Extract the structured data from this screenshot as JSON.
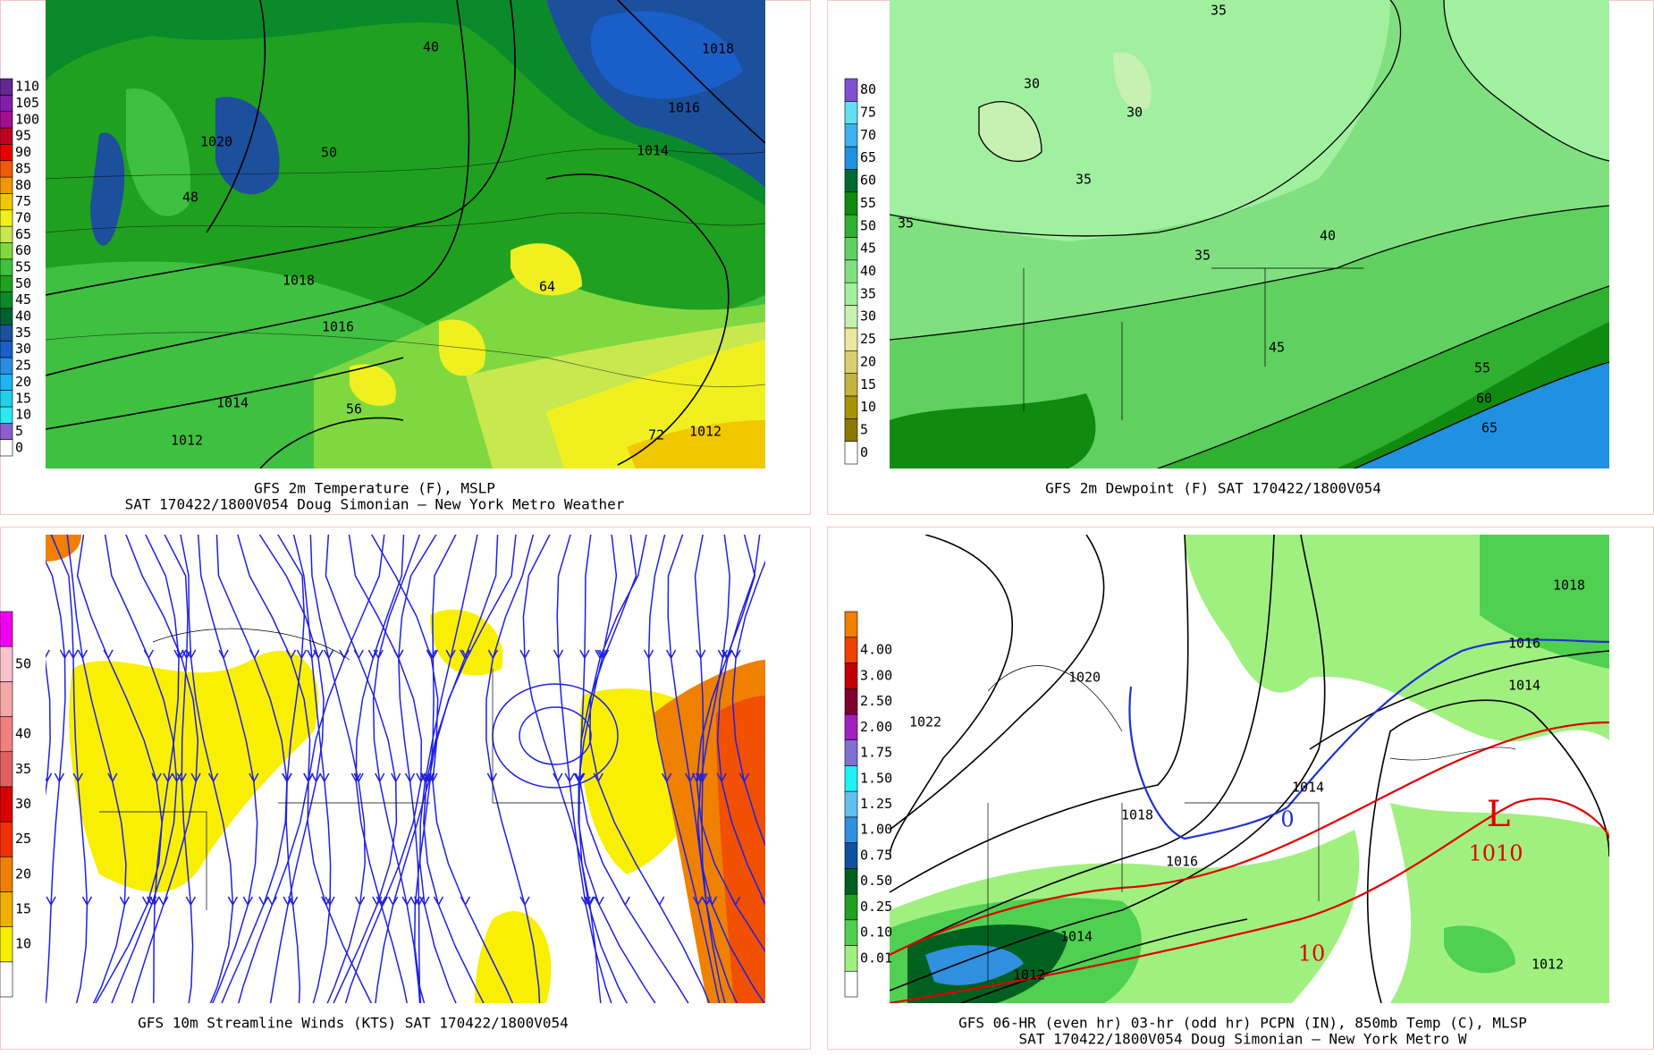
{
  "panels": [
    {
      "caption": [
        "GFS 2m Temperature (F), MSLP",
        "SAT 170422/1800V054 Doug Simonian — New York Metro Weather"
      ],
      "colorbar": [
        {
          "label": "0",
          "color": "#ffffff"
        },
        {
          "label": "5",
          "color": "#8a5fd0"
        },
        {
          "label": "10",
          "color": "#30e8f0"
        },
        {
          "label": "15",
          "color": "#20d0e8"
        },
        {
          "label": "20",
          "color": "#20b4f0"
        },
        {
          "label": "25",
          "color": "#2a8ee0"
        },
        {
          "label": "30",
          "color": "#1a5ec8"
        },
        {
          "label": "35",
          "color": "#1c4f9c"
        },
        {
          "label": "40",
          "color": "#006030"
        },
        {
          "label": "45",
          "color": "#0a8a2a"
        },
        {
          "label": "50",
          "color": "#20a020"
        },
        {
          "label": "55",
          "color": "#40c040"
        },
        {
          "label": "60",
          "color": "#80d840"
        },
        {
          "label": "65",
          "color": "#c8e850"
        },
        {
          "label": "70",
          "color": "#f0f020"
        },
        {
          "label": "75",
          "color": "#f0c800"
        },
        {
          "label": "80",
          "color": "#f09800"
        },
        {
          "label": "85",
          "color": "#f05a00"
        },
        {
          "label": "90",
          "color": "#e80000"
        },
        {
          "label": "95",
          "color": "#c00020"
        },
        {
          "label": "100",
          "color": "#a0108a"
        },
        {
          "label": "105",
          "color": "#8020a8"
        },
        {
          "label": "110",
          "color": "#602890"
        }
      ],
      "contour_labels": [
        {
          "text": "1020",
          "color": "#000000"
        },
        {
          "text": "1018",
          "color": "#000000"
        },
        {
          "text": "1016",
          "color": "#000000"
        },
        {
          "text": "1014",
          "color": "#000000"
        },
        {
          "text": "1012",
          "color": "#000000"
        },
        {
          "text": "1018",
          "color": "#000000"
        },
        {
          "text": "1016",
          "color": "#000000"
        },
        {
          "text": "1014",
          "color": "#000000"
        },
        {
          "text": "1012",
          "color": "#000000"
        },
        {
          "text": "40",
          "color": "#000000"
        },
        {
          "text": "48",
          "color": "#000000"
        },
        {
          "text": "50",
          "color": "#000000"
        },
        {
          "text": "64",
          "color": "#000000"
        },
        {
          "text": "72",
          "color": "#000000"
        },
        {
          "text": "56",
          "color": "#000000"
        }
      ]
    },
    {
      "caption": [
        "GFS 2m Dewpoint (F)  SAT 170422/1800V054"
      ],
      "colorbar": [
        {
          "label": "0",
          "color": "#ffffff"
        },
        {
          "label": "5",
          "color": "#8c7a00"
        },
        {
          "label": "10",
          "color": "#a89400"
        },
        {
          "label": "15",
          "color": "#c4b440"
        },
        {
          "label": "20",
          "color": "#d8d070"
        },
        {
          "label": "25",
          "color": "#ece8a0"
        },
        {
          "label": "30",
          "color": "#c8f0b0"
        },
        {
          "label": "35",
          "color": "#a0f0a0"
        },
        {
          "label": "40",
          "color": "#80e080"
        },
        {
          "label": "45",
          "color": "#60d060"
        },
        {
          "label": "50",
          "color": "#30b030"
        },
        {
          "label": "55",
          "color": "#108a10"
        },
        {
          "label": "60",
          "color": "#006a30"
        },
        {
          "label": "65",
          "color": "#2090e0"
        },
        {
          "label": "70",
          "color": "#40b0f0"
        },
        {
          "label": "75",
          "color": "#60e0f0"
        },
        {
          "label": "80",
          "color": "#8050d0"
        }
      ],
      "contour_labels": [
        {
          "text": "35",
          "color": "#000000"
        },
        {
          "text": "30",
          "color": "#000000"
        },
        {
          "text": "30",
          "color": "#000000"
        },
        {
          "text": "35",
          "color": "#000000"
        },
        {
          "text": "35",
          "color": "#000000"
        },
        {
          "text": "40",
          "color": "#000000"
        },
        {
          "text": "45",
          "color": "#000000"
        },
        {
          "text": "55",
          "color": "#000000"
        },
        {
          "text": "60",
          "color": "#000000"
        },
        {
          "text": "65",
          "color": "#000000"
        },
        {
          "text": "35",
          "color": "#000000"
        }
      ]
    },
    {
      "caption": [
        "GFS 10m Streamline Winds (KTS)  SAT 170422/1800V054"
      ],
      "colorbar": [
        {
          "label": null,
          "color": "#ffffff"
        },
        {
          "label": "10",
          "color": "#f8f000"
        },
        {
          "label": "15",
          "color": "#f0b000"
        },
        {
          "label": "20",
          "color": "#f08000"
        },
        {
          "label": "25",
          "color": "#f03000"
        },
        {
          "label": "30",
          "color": "#d80000"
        },
        {
          "label": "35",
          "color": "#e06060"
        },
        {
          "label": "40",
          "color": "#f08080"
        },
        {
          "label": null,
          "color": "#f4a8a8"
        },
        {
          "label": "50",
          "color": "#f8c4cc"
        },
        {
          "label": null,
          "color": "#f000f0"
        }
      ],
      "contour_labels": []
    },
    {
      "caption": [
        "GFS 06-HR (even hr) 03-hr (odd hr) PCPN (IN), 850mb Temp (C), MLSP",
        "SAT 170422/1800V054 Doug Simonian — New York Metro W"
      ],
      "colorbar": [
        {
          "label": null,
          "color": "#ffffff"
        },
        {
          "label": "0.01",
          "color": "#a0f080"
        },
        {
          "label": "0.10",
          "color": "#50d050"
        },
        {
          "label": "0.25",
          "color": "#20a020"
        },
        {
          "label": "0.50",
          "color": "#006020"
        },
        {
          "label": "0.75",
          "color": "#1050a0"
        },
        {
          "label": "1.00",
          "color": "#3090e0"
        },
        {
          "label": "1.25",
          "color": "#60c0f0"
        },
        {
          "label": "1.50",
          "color": "#20f0f0"
        },
        {
          "label": "1.75",
          "color": "#8070d0"
        },
        {
          "label": "2.00",
          "color": "#a020c0"
        },
        {
          "label": "2.50",
          "color": "#800030"
        },
        {
          "label": "3.00",
          "color": "#c00000"
        },
        {
          "label": "4.00",
          "color": "#f04000"
        },
        {
          "label": null,
          "color": "#f08000"
        }
      ],
      "contour_labels": [
        {
          "text": "1022",
          "color": "#000000"
        },
        {
          "text": "1020",
          "color": "#000000"
        },
        {
          "text": "1018",
          "color": "#000000"
        },
        {
          "text": "1016",
          "color": "#000000"
        },
        {
          "text": "1014",
          "color": "#000000"
        },
        {
          "text": "1014",
          "color": "#000000"
        },
        {
          "text": "1012",
          "color": "#000000"
        },
        {
          "text": "1016",
          "color": "#000000"
        },
        {
          "text": "1014",
          "color": "#000000"
        },
        {
          "text": "1018",
          "color": "#000000"
        },
        {
          "text": "1012",
          "color": "#000000"
        },
        {
          "text": "1010",
          "color": "#e00000"
        },
        {
          "text": "L",
          "color": "#e00000"
        },
        {
          "text": "0",
          "color": "#2030d0"
        },
        {
          "text": "10",
          "color": "#e00000"
        }
      ]
    }
  ]
}
